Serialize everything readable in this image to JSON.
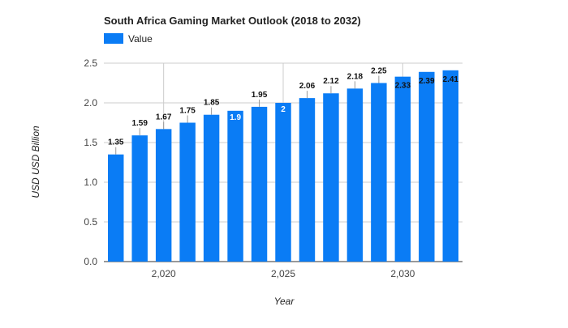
{
  "chart_data": {
    "type": "bar",
    "title": "South Africa Gaming Market Outlook (2018 to 2032)",
    "xlabel": "Year",
    "ylabel": "USD USD Billion",
    "legend": {
      "position": "top-left",
      "entries": [
        "Value"
      ]
    },
    "ylim": [
      0,
      2.5
    ],
    "y_ticks": [
      "0.0",
      "0.5",
      "1.0",
      "1.5",
      "2.0",
      "2.5"
    ],
    "x_ticks": [
      {
        "x": 2020,
        "label": "2,020"
      },
      {
        "x": 2025,
        "label": "2,025"
      },
      {
        "x": 2030,
        "label": "2,030"
      }
    ],
    "grid": true,
    "series": [
      {
        "name": "Value",
        "color": "#0a7cf5",
        "points": [
          {
            "x": 2018,
            "y": 1.35,
            "label": "1.35"
          },
          {
            "x": 2019,
            "y": 1.59,
            "label": "1.59"
          },
          {
            "x": 2020,
            "y": 1.67,
            "label": "1.67"
          },
          {
            "x": 2021,
            "y": 1.75,
            "label": "1.75"
          },
          {
            "x": 2022,
            "y": 1.85,
            "label": "1.85"
          },
          {
            "x": 2023,
            "y": 1.9,
            "label": "1.9"
          },
          {
            "x": 2024,
            "y": 1.95,
            "label": "1.95"
          },
          {
            "x": 2025,
            "y": 2.0,
            "label": "2"
          },
          {
            "x": 2026,
            "y": 2.06,
            "label": "2.06"
          },
          {
            "x": 2027,
            "y": 2.12,
            "label": "2.12"
          },
          {
            "x": 2028,
            "y": 2.18,
            "label": "2.18"
          },
          {
            "x": 2029,
            "y": 2.25,
            "label": "2.25"
          },
          {
            "x": 2030,
            "y": 2.33,
            "label": "2.33"
          },
          {
            "x": 2031,
            "y": 2.39,
            "label": "2.39"
          },
          {
            "x": 2032,
            "y": 2.41,
            "label": "2.41"
          }
        ]
      }
    ]
  }
}
